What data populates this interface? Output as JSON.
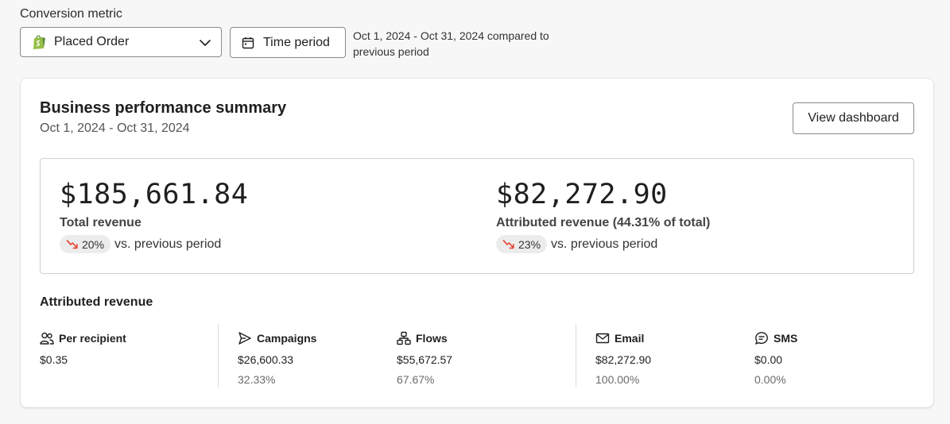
{
  "filters": {
    "metric_label": "Conversion metric",
    "metric_value": "Placed Order",
    "time_button": "Time period",
    "period_note": "Oct 1, 2024 - Oct 31, 2024 compared to previous period"
  },
  "summary": {
    "title": "Business performance summary",
    "date_range": "Oct 1, 2024 - Oct 31, 2024",
    "view_button": "View dashboard",
    "total": {
      "amount": "$185,661.84",
      "label": "Total revenue",
      "change": "20%",
      "change_suffix": "vs. previous period"
    },
    "attributed": {
      "amount": "$82,272.90",
      "label": "Attributed revenue (44.31% of total)",
      "change": "23%",
      "change_suffix": "vs. previous period"
    }
  },
  "attributed_revenue": {
    "title": "Attributed revenue",
    "stats": [
      {
        "label": "Per recipient",
        "value": "$0.35",
        "percent": "",
        "icon": "people-icon"
      },
      {
        "label": "Campaigns",
        "value": "$26,600.33",
        "percent": "32.33%",
        "icon": "send-icon"
      },
      {
        "label": "Flows",
        "value": "$55,672.57",
        "percent": "67.67%",
        "icon": "flow-icon"
      },
      {
        "label": "Email",
        "value": "$82,272.90",
        "percent": "100.00%",
        "icon": "mail-icon"
      },
      {
        "label": "SMS",
        "value": "$0.00",
        "percent": "0.00%",
        "icon": "message-icon"
      }
    ]
  },
  "colors": {
    "trend_down": "#e5483a",
    "shopify_green": "#95bf47",
    "pill_bg": "#ececec"
  }
}
